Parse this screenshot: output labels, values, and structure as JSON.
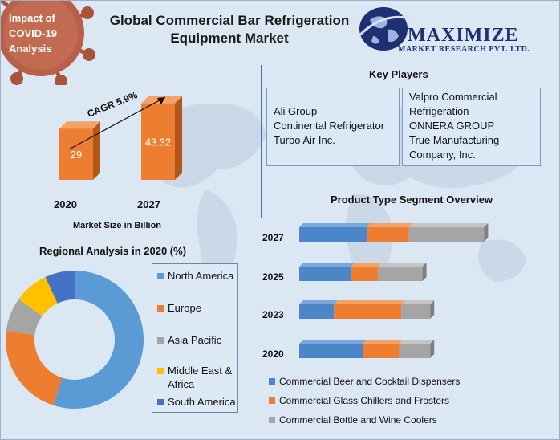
{
  "title": "Global Commercial Bar Refrigeration Equipment Market",
  "impact_badge": "Impact of COVID-19 Analysis",
  "logo": {
    "brand": "MAXIMIZE",
    "tagline": "MARKET RESEARCH PVT. LTD."
  },
  "market_size": {
    "caption": "Market Size in Billion",
    "cagr_label": "CAGR 5.9%"
  },
  "key_players": {
    "heading": "Key Players",
    "left": [
      "Ali Group",
      "Continental Refrigerator",
      "Turbo Air Inc."
    ],
    "right": [
      "Valpro Commercial Refrigeration",
      "ONNERA GROUP",
      "True Manufacturing Company, Inc."
    ]
  },
  "regional": {
    "heading": "Regional Analysis in 2020 (%)"
  },
  "product": {
    "heading": "Product Type Segment Overview"
  },
  "colors": {
    "blue": "#4a86c8",
    "orange": "#ed7d31",
    "gray": "#a5a5a5",
    "yellow": "#ffc000",
    "darkblue": "#4472c4",
    "pie_blue": "#5b9bd5"
  },
  "chart_data": [
    {
      "type": "bar",
      "title": "Market Size in Billion",
      "categories": [
        "2020",
        "2027"
      ],
      "values": [
        29,
        43.32
      ],
      "ylim": [
        0,
        50
      ],
      "annotation": "CAGR 5.9%"
    },
    {
      "type": "pie",
      "title": "Regional Analysis in 2020 (%)",
      "labels": [
        "North America",
        "Europe",
        "Asia Pacific",
        "Middle East & Africa",
        "South America"
      ],
      "values": [
        55,
        22,
        8,
        8,
        7
      ]
    },
    {
      "type": "bar",
      "orientation": "horizontal-stacked",
      "title": "Product Type Segment Overview",
      "categories": [
        "2027",
        "2025",
        "2023",
        "2020"
      ],
      "series": [
        {
          "name": "Commercial Beer and Cocktail Dispensers",
          "values": [
            35,
            27,
            18,
            33
          ]
        },
        {
          "name": "Commercial Glass Chillers and Frosters",
          "values": [
            22,
            14,
            35,
            19
          ]
        },
        {
          "name": "Commercial Bottle and Wine Coolers",
          "values": [
            39,
            23,
            15,
            16
          ]
        }
      ],
      "xlim": [
        0,
        100
      ]
    }
  ]
}
